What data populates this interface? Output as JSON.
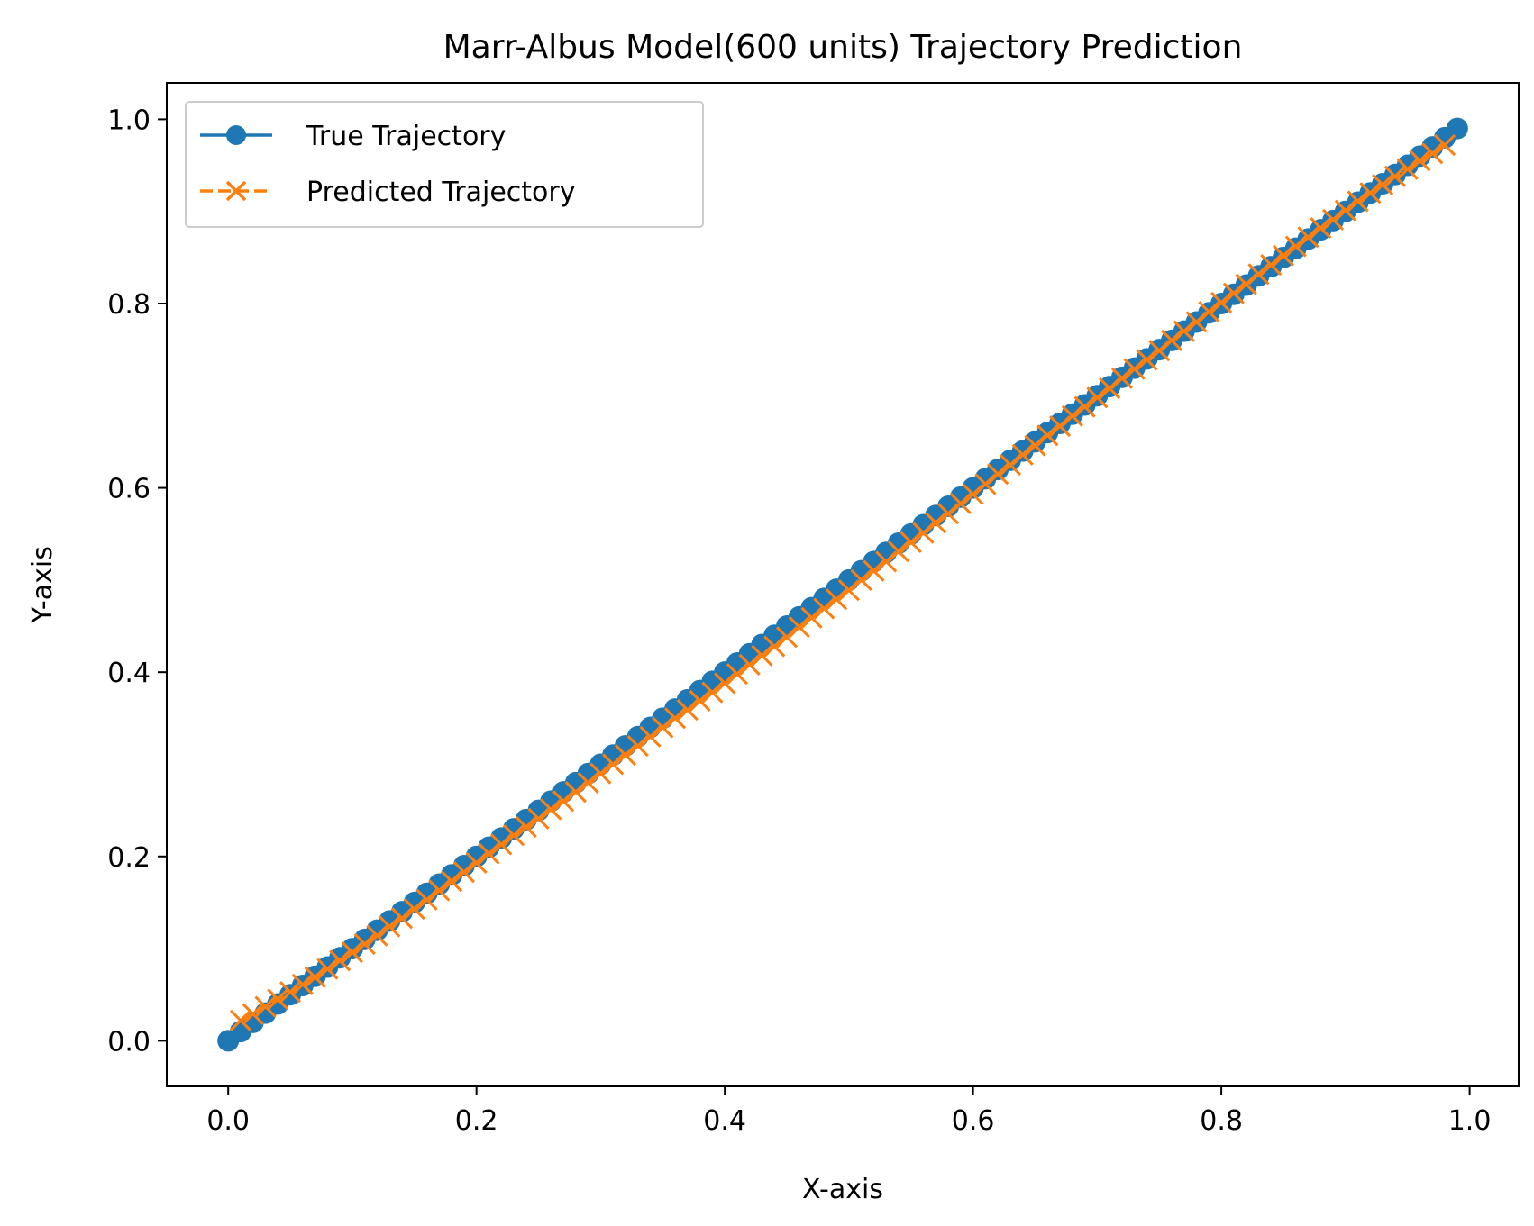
{
  "chart_data": {
    "type": "line",
    "title": "Marr-Albus Model(600 units) Trajectory Prediction",
    "xlabel": "X-axis",
    "ylabel": "Y-axis",
    "xlim": [
      -0.0495,
      1.0395
    ],
    "ylim": [
      -0.0495,
      1.0395
    ],
    "xticks": [
      0.0,
      0.2,
      0.4,
      0.6,
      0.8,
      1.0
    ],
    "xtick_labels": [
      "0.0",
      "0.2",
      "0.4",
      "0.6",
      "0.8",
      "1.0"
    ],
    "yticks": [
      0.0,
      0.2,
      0.4,
      0.6,
      0.8,
      1.0
    ],
    "ytick_labels": [
      "0.0",
      "0.2",
      "0.4",
      "0.6",
      "0.8",
      "1.0"
    ],
    "grid": false,
    "legend_position": "upper-left",
    "series": [
      {
        "name": "True Trajectory",
        "color": "#1f77b4",
        "line_style": "solid",
        "marker": "circle",
        "x": [
          0.0,
          0.01,
          0.02,
          0.03,
          0.04,
          0.05,
          0.06,
          0.07,
          0.08,
          0.09,
          0.1,
          0.11,
          0.12,
          0.13,
          0.14,
          0.15,
          0.16,
          0.17,
          0.18,
          0.19,
          0.2,
          0.21,
          0.22,
          0.23,
          0.24,
          0.25,
          0.26,
          0.27,
          0.28,
          0.29,
          0.3,
          0.31,
          0.32,
          0.33,
          0.34,
          0.35,
          0.36,
          0.37,
          0.38,
          0.39,
          0.4,
          0.41,
          0.42,
          0.43,
          0.44,
          0.45,
          0.46,
          0.47,
          0.48,
          0.49,
          0.5,
          0.51,
          0.52,
          0.53,
          0.54,
          0.55,
          0.56,
          0.57,
          0.58,
          0.59,
          0.6,
          0.61,
          0.62,
          0.63,
          0.64,
          0.65,
          0.66,
          0.67,
          0.68,
          0.69,
          0.7,
          0.71,
          0.72,
          0.73,
          0.74,
          0.75,
          0.76,
          0.77,
          0.78,
          0.79,
          0.8,
          0.81,
          0.82,
          0.83,
          0.84,
          0.85,
          0.86,
          0.87,
          0.88,
          0.89,
          0.9,
          0.91,
          0.92,
          0.93,
          0.94,
          0.95,
          0.96,
          0.97,
          0.98,
          0.99
        ],
        "y": [
          0.0,
          0.01,
          0.02,
          0.03,
          0.04,
          0.05,
          0.06,
          0.07,
          0.08,
          0.09,
          0.1,
          0.11,
          0.12,
          0.13,
          0.14,
          0.15,
          0.16,
          0.17,
          0.18,
          0.19,
          0.2,
          0.21,
          0.22,
          0.23,
          0.24,
          0.25,
          0.26,
          0.27,
          0.28,
          0.29,
          0.3,
          0.31,
          0.32,
          0.33,
          0.34,
          0.35,
          0.36,
          0.37,
          0.38,
          0.39,
          0.4,
          0.41,
          0.42,
          0.43,
          0.44,
          0.45,
          0.46,
          0.47,
          0.48,
          0.49,
          0.5,
          0.51,
          0.52,
          0.53,
          0.54,
          0.55,
          0.56,
          0.57,
          0.58,
          0.59,
          0.6,
          0.61,
          0.62,
          0.63,
          0.64,
          0.65,
          0.66,
          0.67,
          0.68,
          0.69,
          0.7,
          0.71,
          0.72,
          0.73,
          0.74,
          0.75,
          0.76,
          0.77,
          0.78,
          0.79,
          0.8,
          0.81,
          0.82,
          0.83,
          0.84,
          0.85,
          0.86,
          0.87,
          0.88,
          0.89,
          0.9,
          0.91,
          0.92,
          0.93,
          0.94,
          0.95,
          0.96,
          0.97,
          0.98,
          0.99
        ]
      },
      {
        "name": "Predicted Trajectory",
        "color": "#ff7f0e",
        "line_style": "dashed",
        "marker": "x",
        "x": [
          0.01,
          0.02,
          0.03,
          0.04,
          0.05,
          0.06,
          0.07,
          0.08,
          0.09,
          0.1,
          0.11,
          0.12,
          0.13,
          0.14,
          0.15,
          0.16,
          0.17,
          0.18,
          0.19,
          0.2,
          0.21,
          0.22,
          0.23,
          0.24,
          0.25,
          0.26,
          0.27,
          0.28,
          0.29,
          0.3,
          0.31,
          0.32,
          0.33,
          0.34,
          0.35,
          0.36,
          0.37,
          0.38,
          0.39,
          0.4,
          0.41,
          0.42,
          0.43,
          0.44,
          0.45,
          0.46,
          0.47,
          0.48,
          0.49,
          0.5,
          0.51,
          0.52,
          0.53,
          0.54,
          0.55,
          0.56,
          0.57,
          0.58,
          0.59,
          0.6,
          0.61,
          0.62,
          0.63,
          0.64,
          0.65,
          0.66,
          0.67,
          0.68,
          0.69,
          0.7,
          0.71,
          0.72,
          0.73,
          0.74,
          0.75,
          0.76,
          0.77,
          0.78,
          0.79,
          0.8,
          0.81,
          0.82,
          0.83,
          0.84,
          0.85,
          0.86,
          0.87,
          0.88,
          0.89,
          0.9,
          0.91,
          0.92,
          0.93,
          0.94,
          0.95,
          0.96,
          0.97,
          0.98
        ],
        "y": [
          0.022,
          0.029,
          0.037,
          0.045,
          0.053,
          0.061,
          0.069,
          0.078,
          0.087,
          0.096,
          0.105,
          0.114,
          0.124,
          0.133,
          0.143,
          0.153,
          0.163,
          0.173,
          0.183,
          0.193,
          0.203,
          0.213,
          0.223,
          0.232,
          0.241,
          0.251,
          0.26,
          0.27,
          0.28,
          0.29,
          0.3,
          0.31,
          0.32,
          0.33,
          0.34,
          0.35,
          0.359,
          0.369,
          0.378,
          0.388,
          0.398,
          0.408,
          0.418,
          0.428,
          0.438,
          0.449,
          0.459,
          0.469,
          0.479,
          0.489,
          0.5,
          0.51,
          0.52,
          0.531,
          0.541,
          0.551,
          0.562,
          0.572,
          0.583,
          0.593,
          0.604,
          0.615,
          0.625,
          0.636,
          0.646,
          0.657,
          0.667,
          0.678,
          0.688,
          0.698,
          0.708,
          0.719,
          0.729,
          0.739,
          0.749,
          0.76,
          0.77,
          0.78,
          0.791,
          0.801,
          0.811,
          0.821,
          0.832,
          0.842,
          0.852,
          0.862,
          0.872,
          0.882,
          0.891,
          0.901,
          0.911,
          0.92,
          0.929,
          0.938,
          0.946,
          0.955,
          0.963,
          0.972
        ]
      }
    ]
  }
}
